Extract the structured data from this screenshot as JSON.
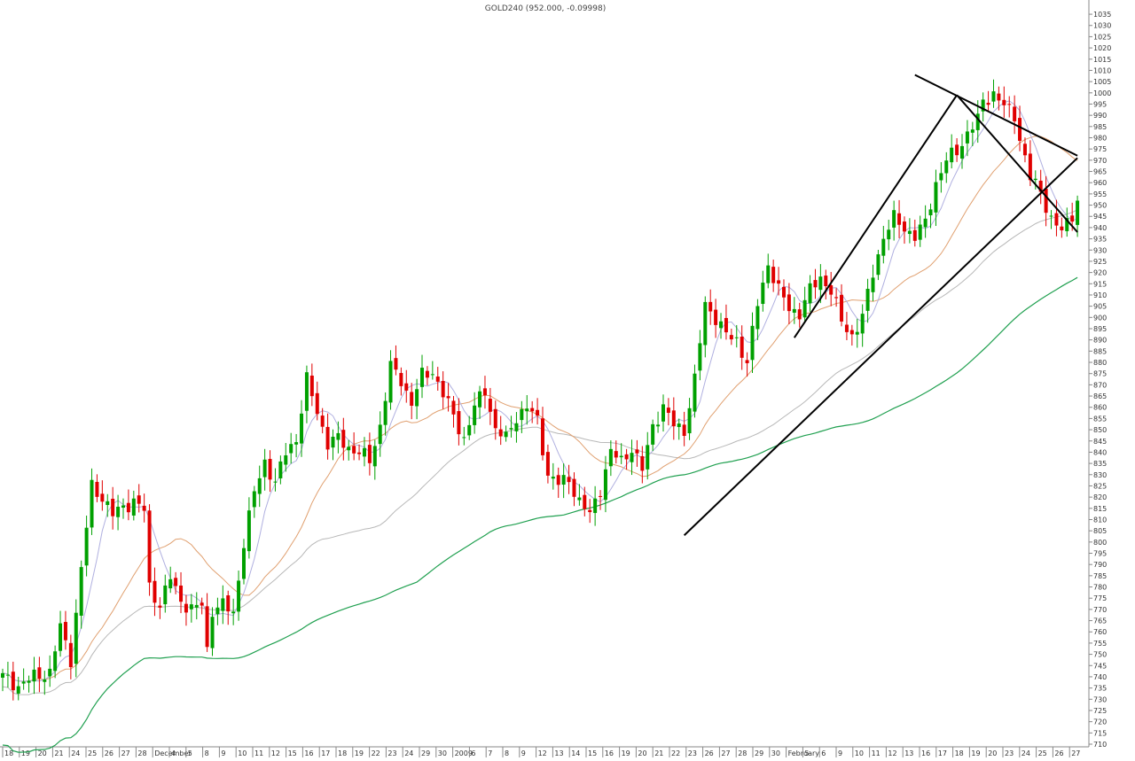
{
  "header": {
    "title": "GOLD240 (952.000, -0.09998)"
  },
  "chart_data": {
    "type": "candlestick",
    "title": "GOLD240 (952.000, -0.09998)",
    "symbol": "GOLD240",
    "last": 952.0,
    "change": -0.09998,
    "ylim": [
      710,
      1037
    ],
    "y_ticks": [
      710,
      715,
      720,
      725,
      730,
      735,
      740,
      745,
      750,
      755,
      760,
      765,
      770,
      775,
      780,
      785,
      790,
      795,
      800,
      805,
      810,
      815,
      820,
      825,
      830,
      835,
      840,
      845,
      850,
      855,
      860,
      865,
      870,
      875,
      880,
      885,
      890,
      895,
      900,
      905,
      910,
      915,
      920,
      925,
      930,
      935,
      940,
      945,
      950,
      955,
      960,
      965,
      970,
      975,
      980,
      985,
      990,
      995,
      1000,
      1005,
      1010,
      1015,
      1020,
      1025,
      1030,
      1035
    ],
    "x_labels": [
      "18",
      "19",
      "20",
      "21",
      "24",
      "25",
      "26",
      "27",
      "28",
      "December",
      "4",
      "5",
      "8",
      "9",
      "10",
      "11",
      "12",
      "15",
      "16",
      "17",
      "18",
      "19",
      "22",
      "23",
      "24",
      "29",
      "30",
      "2009",
      "6",
      "7",
      "8",
      "9",
      "12",
      "13",
      "14",
      "15",
      "16",
      "19",
      "20",
      "21",
      "22",
      "23",
      "26",
      "27",
      "28",
      "29",
      "30",
      "February",
      "5",
      "6",
      "9",
      "10",
      "11",
      "12",
      "13",
      "16",
      "17",
      "18",
      "19",
      "20",
      "23",
      "24",
      "25",
      "26",
      "27"
    ],
    "grid": "none",
    "legend": "none",
    "colors": {
      "up": "#00a000",
      "down": "#e00000",
      "ma_short": "#b0b0e0",
      "ma_mid": "#e0a070",
      "ma_long": "#b8b8b8",
      "ma_200": "#20a050",
      "trendline": "#000000"
    },
    "price_path": [
      [
        0,
        740
      ],
      [
        3,
        736
      ],
      [
        6,
        740
      ],
      [
        9,
        742
      ],
      [
        11,
        762
      ],
      [
        13,
        748
      ],
      [
        15,
        788
      ],
      [
        17,
        825
      ],
      [
        19,
        820
      ],
      [
        21,
        812
      ],
      [
        23,
        816
      ],
      [
        25,
        818
      ],
      [
        27,
        814
      ],
      [
        28,
        780
      ],
      [
        30,
        772
      ],
      [
        32,
        784
      ],
      [
        34,
        774
      ],
      [
        36,
        770
      ],
      [
        38,
        772
      ],
      [
        39,
        752
      ],
      [
        40,
        770
      ],
      [
        42,
        772
      ],
      [
        44,
        768
      ],
      [
        46,
        800
      ],
      [
        48,
        822
      ],
      [
        50,
        836
      ],
      [
        52,
        826
      ],
      [
        54,
        840
      ],
      [
        56,
        846
      ],
      [
        58,
        872
      ],
      [
        60,
        858
      ],
      [
        62,
        844
      ],
      [
        64,
        846
      ],
      [
        66,
        842
      ],
      [
        68,
        840
      ],
      [
        70,
        836
      ],
      [
        72,
        852
      ],
      [
        74,
        878
      ],
      [
        76,
        872
      ],
      [
        78,
        862
      ],
      [
        80,
        874
      ],
      [
        82,
        876
      ],
      [
        84,
        866
      ],
      [
        86,
        856
      ],
      [
        88,
        846
      ],
      [
        90,
        860
      ],
      [
        92,
        868
      ],
      [
        94,
        850
      ],
      [
        96,
        846
      ],
      [
        98,
        856
      ],
      [
        100,
        860
      ],
      [
        102,
        854
      ],
      [
        104,
        830
      ],
      [
        106,
        826
      ],
      [
        108,
        828
      ],
      [
        110,
        818
      ],
      [
        112,
        812
      ],
      [
        114,
        824
      ],
      [
        116,
        840
      ],
      [
        118,
        836
      ],
      [
        120,
        842
      ],
      [
        122,
        832
      ],
      [
        124,
        852
      ],
      [
        126,
        860
      ],
      [
        128,
        852
      ],
      [
        130,
        850
      ],
      [
        132,
        872
      ],
      [
        134,
        906
      ],
      [
        136,
        900
      ],
      [
        138,
        892
      ],
      [
        140,
        890
      ],
      [
        142,
        880
      ],
      [
        144,
        906
      ],
      [
        146,
        924
      ],
      [
        148,
        912
      ],
      [
        150,
        904
      ],
      [
        152,
        902
      ],
      [
        154,
        912
      ],
      [
        156,
        918
      ],
      [
        158,
        912
      ],
      [
        160,
        898
      ],
      [
        162,
        892
      ],
      [
        164,
        900
      ],
      [
        166,
        920
      ],
      [
        168,
        936
      ],
      [
        170,
        944
      ],
      [
        172,
        940
      ],
      [
        174,
        936
      ],
      [
        176,
        942
      ],
      [
        178,
        960
      ],
      [
        180,
        970
      ],
      [
        182,
        974
      ],
      [
        184,
        982
      ],
      [
        186,
        988
      ],
      [
        187,
        996
      ],
      [
        189,
        1000
      ],
      [
        191,
        994
      ],
      [
        193,
        990
      ],
      [
        194,
        980
      ],
      [
        196,
        962
      ],
      [
        198,
        956
      ],
      [
        200,
        944
      ],
      [
        202,
        938
      ],
      [
        204,
        946
      ],
      [
        205,
        952
      ]
    ]
  }
}
